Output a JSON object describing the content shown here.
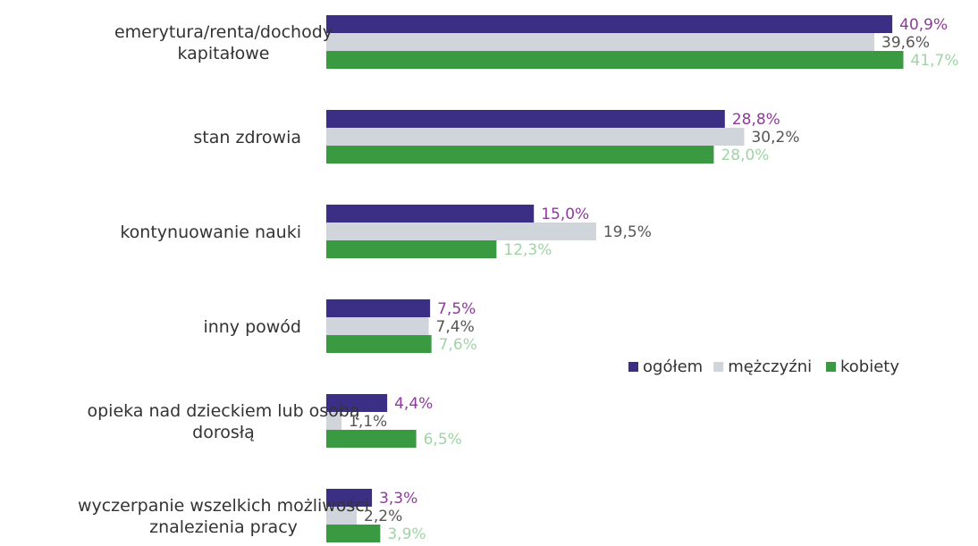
{
  "chart_data": {
    "type": "bar",
    "orientation": "horizontal",
    "categories": [
      [
        "emerytura/renta/dochody",
        "kapitałowe"
      ],
      [
        "stan zdrowia"
      ],
      [
        "kontynuowanie nauki"
      ],
      [
        "inny powód"
      ],
      [
        "opieka nad dzieckiem lub osobą",
        "dorosłą"
      ],
      [
        "wyczerpanie wszelkich możliwości",
        "znalezienia pracy"
      ]
    ],
    "series": [
      {
        "name": "ogółem",
        "color": "#3b2f85",
        "label_color": "#8e3a9c",
        "values": [
          40.9,
          28.8,
          15.0,
          7.5,
          4.4,
          3.3
        ],
        "labels": [
          "40,9%",
          "28,8%",
          "15,0%",
          "7,5%",
          "4,4%",
          "3,3%"
        ]
      },
      {
        "name": "mężczyźni",
        "color": "#cfd5da",
        "label_color": "#555555",
        "values": [
          39.6,
          30.2,
          19.5,
          7.4,
          1.1,
          2.2
        ],
        "labels": [
          "39,6%",
          "30,2%",
          "19,5%",
          "7,4%",
          "1,1%",
          "2,2%"
        ]
      },
      {
        "name": "kobiety",
        "color": "#3a9a42",
        "label_color": "#9fd4a4",
        "values": [
          41.7,
          28.0,
          12.3,
          7.6,
          6.5,
          3.9
        ],
        "labels": [
          "41,7%",
          "28,0%",
          "12,3%",
          "7,6%",
          "6,5%",
          "3,9%"
        ]
      }
    ],
    "xlim": [
      0,
      42
    ],
    "grid": false,
    "legend_position": "right"
  }
}
